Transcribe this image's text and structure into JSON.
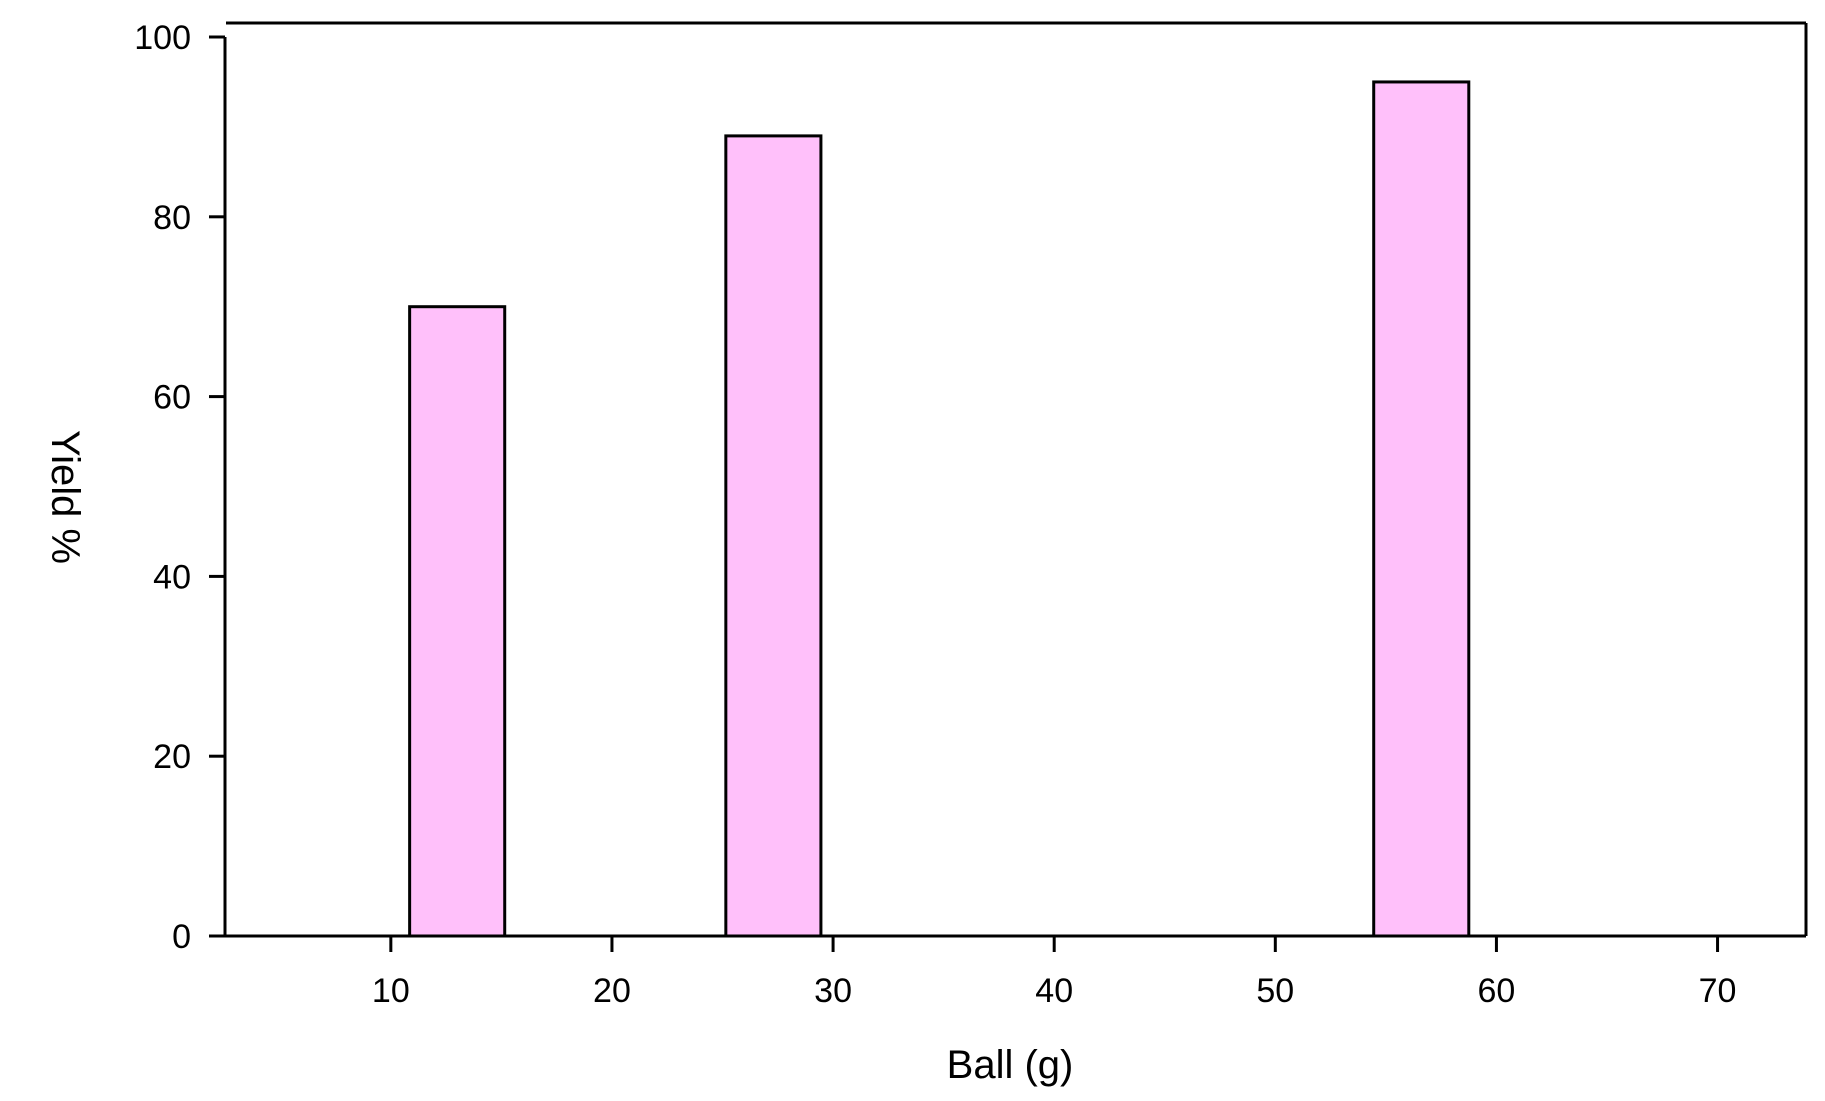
{
  "chart_data": {
    "type": "bar",
    "title": "",
    "xlabel": "Ball (g)",
    "ylabel": "Yield %",
    "xlim": [
      2.5,
      74
    ],
    "ylim": [
      0,
      100
    ],
    "x_ticks": [
      10,
      20,
      30,
      40,
      50,
      60,
      70
    ],
    "y_ticks": [
      0,
      20,
      40,
      60,
      80,
      100
    ],
    "bar_width": 4.3,
    "grid": false,
    "legend": "none",
    "x": [
      13,
      27.3,
      56.6
    ],
    "values": [
      70,
      89,
      95
    ],
    "colors": {
      "bar_fill": "#ffc0fa",
      "bar_stroke": "#000000",
      "axis": "#000000"
    }
  }
}
